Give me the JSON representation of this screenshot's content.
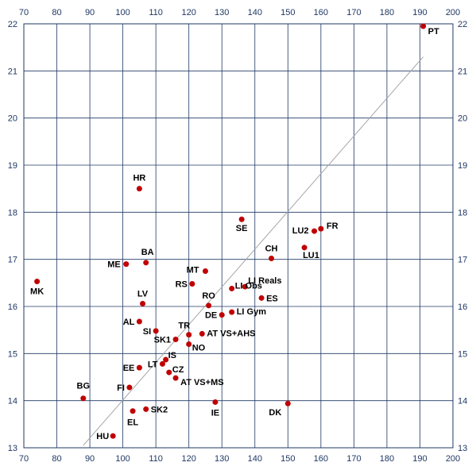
{
  "chart_data": {
    "type": "scatter",
    "title": "",
    "xlabel": "",
    "ylabel": "",
    "xlim": [
      70,
      200
    ],
    "ylim": [
      13,
      22
    ],
    "x_ticks": [
      70,
      80,
      90,
      100,
      110,
      120,
      130,
      140,
      150,
      160,
      170,
      180,
      190,
      200
    ],
    "y_ticks": [
      13,
      14,
      15,
      16,
      17,
      18,
      19,
      20,
      21,
      22
    ],
    "grid": true,
    "ticks_on_all_sides": true,
    "marker_color": "#c00000",
    "trend_line_color": "#a6a6a6",
    "trend_line": [
      [
        88,
        13.05
      ],
      [
        191,
        21.3
      ]
    ],
    "points": [
      {
        "label": "PT",
        "x": 191,
        "y": 21.95
      },
      {
        "label": "HR",
        "x": 105,
        "y": 18.5
      },
      {
        "label": "SE",
        "x": 136,
        "y": 17.85
      },
      {
        "label": "FR",
        "x": 160,
        "y": 17.65
      },
      {
        "label": "LU2",
        "x": 158,
        "y": 17.6
      },
      {
        "label": "LU1",
        "x": 155,
        "y": 17.25
      },
      {
        "label": "CH",
        "x": 145,
        "y": 17.02
      },
      {
        "label": "BA",
        "x": 107,
        "y": 16.93
      },
      {
        "label": "ME",
        "x": 101,
        "y": 16.9
      },
      {
        "label": "MT",
        "x": 125,
        "y": 16.75
      },
      {
        "label": "MK",
        "x": 74,
        "y": 16.53
      },
      {
        "label": "RS",
        "x": 121,
        "y": 16.48
      },
      {
        "label": "LI Reals",
        "x": 137,
        "y": 16.42
      },
      {
        "label": "LI Obs",
        "x": 133,
        "y": 16.38
      },
      {
        "label": "ES",
        "x": 142,
        "y": 16.18
      },
      {
        "label": "LV",
        "x": 106,
        "y": 16.06
      },
      {
        "label": "RO",
        "x": 126,
        "y": 16.02
      },
      {
        "label": "LI Gym",
        "x": 133,
        "y": 15.88
      },
      {
        "label": "DE",
        "x": 130,
        "y": 15.82
      },
      {
        "label": "AL",
        "x": 105,
        "y": 15.68
      },
      {
        "label": "SI",
        "x": 110,
        "y": 15.48
      },
      {
        "label": "TR",
        "x": 120,
        "y": 15.4
      },
      {
        "label": "AT VS+AHS",
        "x": 124,
        "y": 15.42
      },
      {
        "label": "SK1",
        "x": 116,
        "y": 15.3
      },
      {
        "label": "NO",
        "x": 120,
        "y": 15.2
      },
      {
        "label": "IS",
        "x": 113,
        "y": 14.87
      },
      {
        "label": "LT",
        "x": 112,
        "y": 14.78
      },
      {
        "label": "EE",
        "x": 105,
        "y": 14.7
      },
      {
        "label": "CZ",
        "x": 114,
        "y": 14.6
      },
      {
        "label": "AT VS+MS",
        "x": 116,
        "y": 14.48
      },
      {
        "label": "FI",
        "x": 102,
        "y": 14.28
      },
      {
        "label": "BG",
        "x": 88,
        "y": 14.05
      },
      {
        "label": "IE",
        "x": 128,
        "y": 13.97
      },
      {
        "label": "DK",
        "x": 150,
        "y": 13.94
      },
      {
        "label": "SK2",
        "x": 107,
        "y": 13.82
      },
      {
        "label": "EL",
        "x": 103,
        "y": 13.78
      },
      {
        "label": "HU",
        "x": 97,
        "y": 13.25
      }
    ]
  }
}
